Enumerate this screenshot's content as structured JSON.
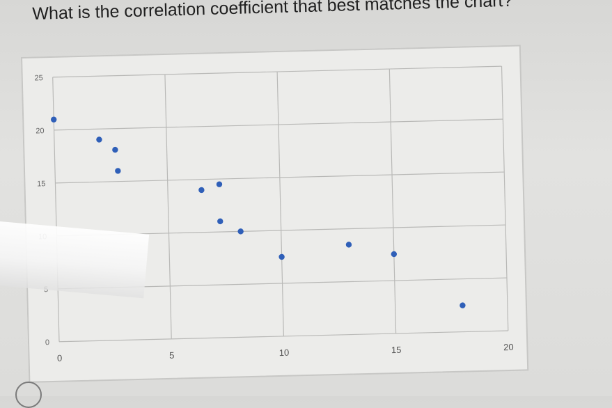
{
  "question": {
    "text": "What is the correlation coefficient that best matches the chart?"
  },
  "chart_data": {
    "type": "scatter",
    "title": "",
    "xlabel": "",
    "ylabel": "",
    "xlim": [
      0,
      20
    ],
    "ylim": [
      0,
      25
    ],
    "x_ticks": [
      "0",
      "5",
      "10",
      "15",
      "20"
    ],
    "y_ticks": [
      "0",
      "5",
      "10",
      "15",
      "20",
      "25"
    ],
    "grid": true,
    "marker_color": "#2f5fb8",
    "series": [
      {
        "points": [
          [
            0,
            21
          ],
          [
            2,
            19
          ],
          [
            2.7,
            18
          ],
          [
            2.8,
            16
          ],
          [
            6.5,
            14
          ],
          [
            7.3,
            14.5
          ],
          [
            7.3,
            11
          ],
          [
            8.2,
            10
          ],
          [
            10,
            7.5
          ],
          [
            13,
            8.5
          ],
          [
            15,
            7.5
          ],
          [
            18,
            2.5
          ]
        ]
      }
    ]
  }
}
